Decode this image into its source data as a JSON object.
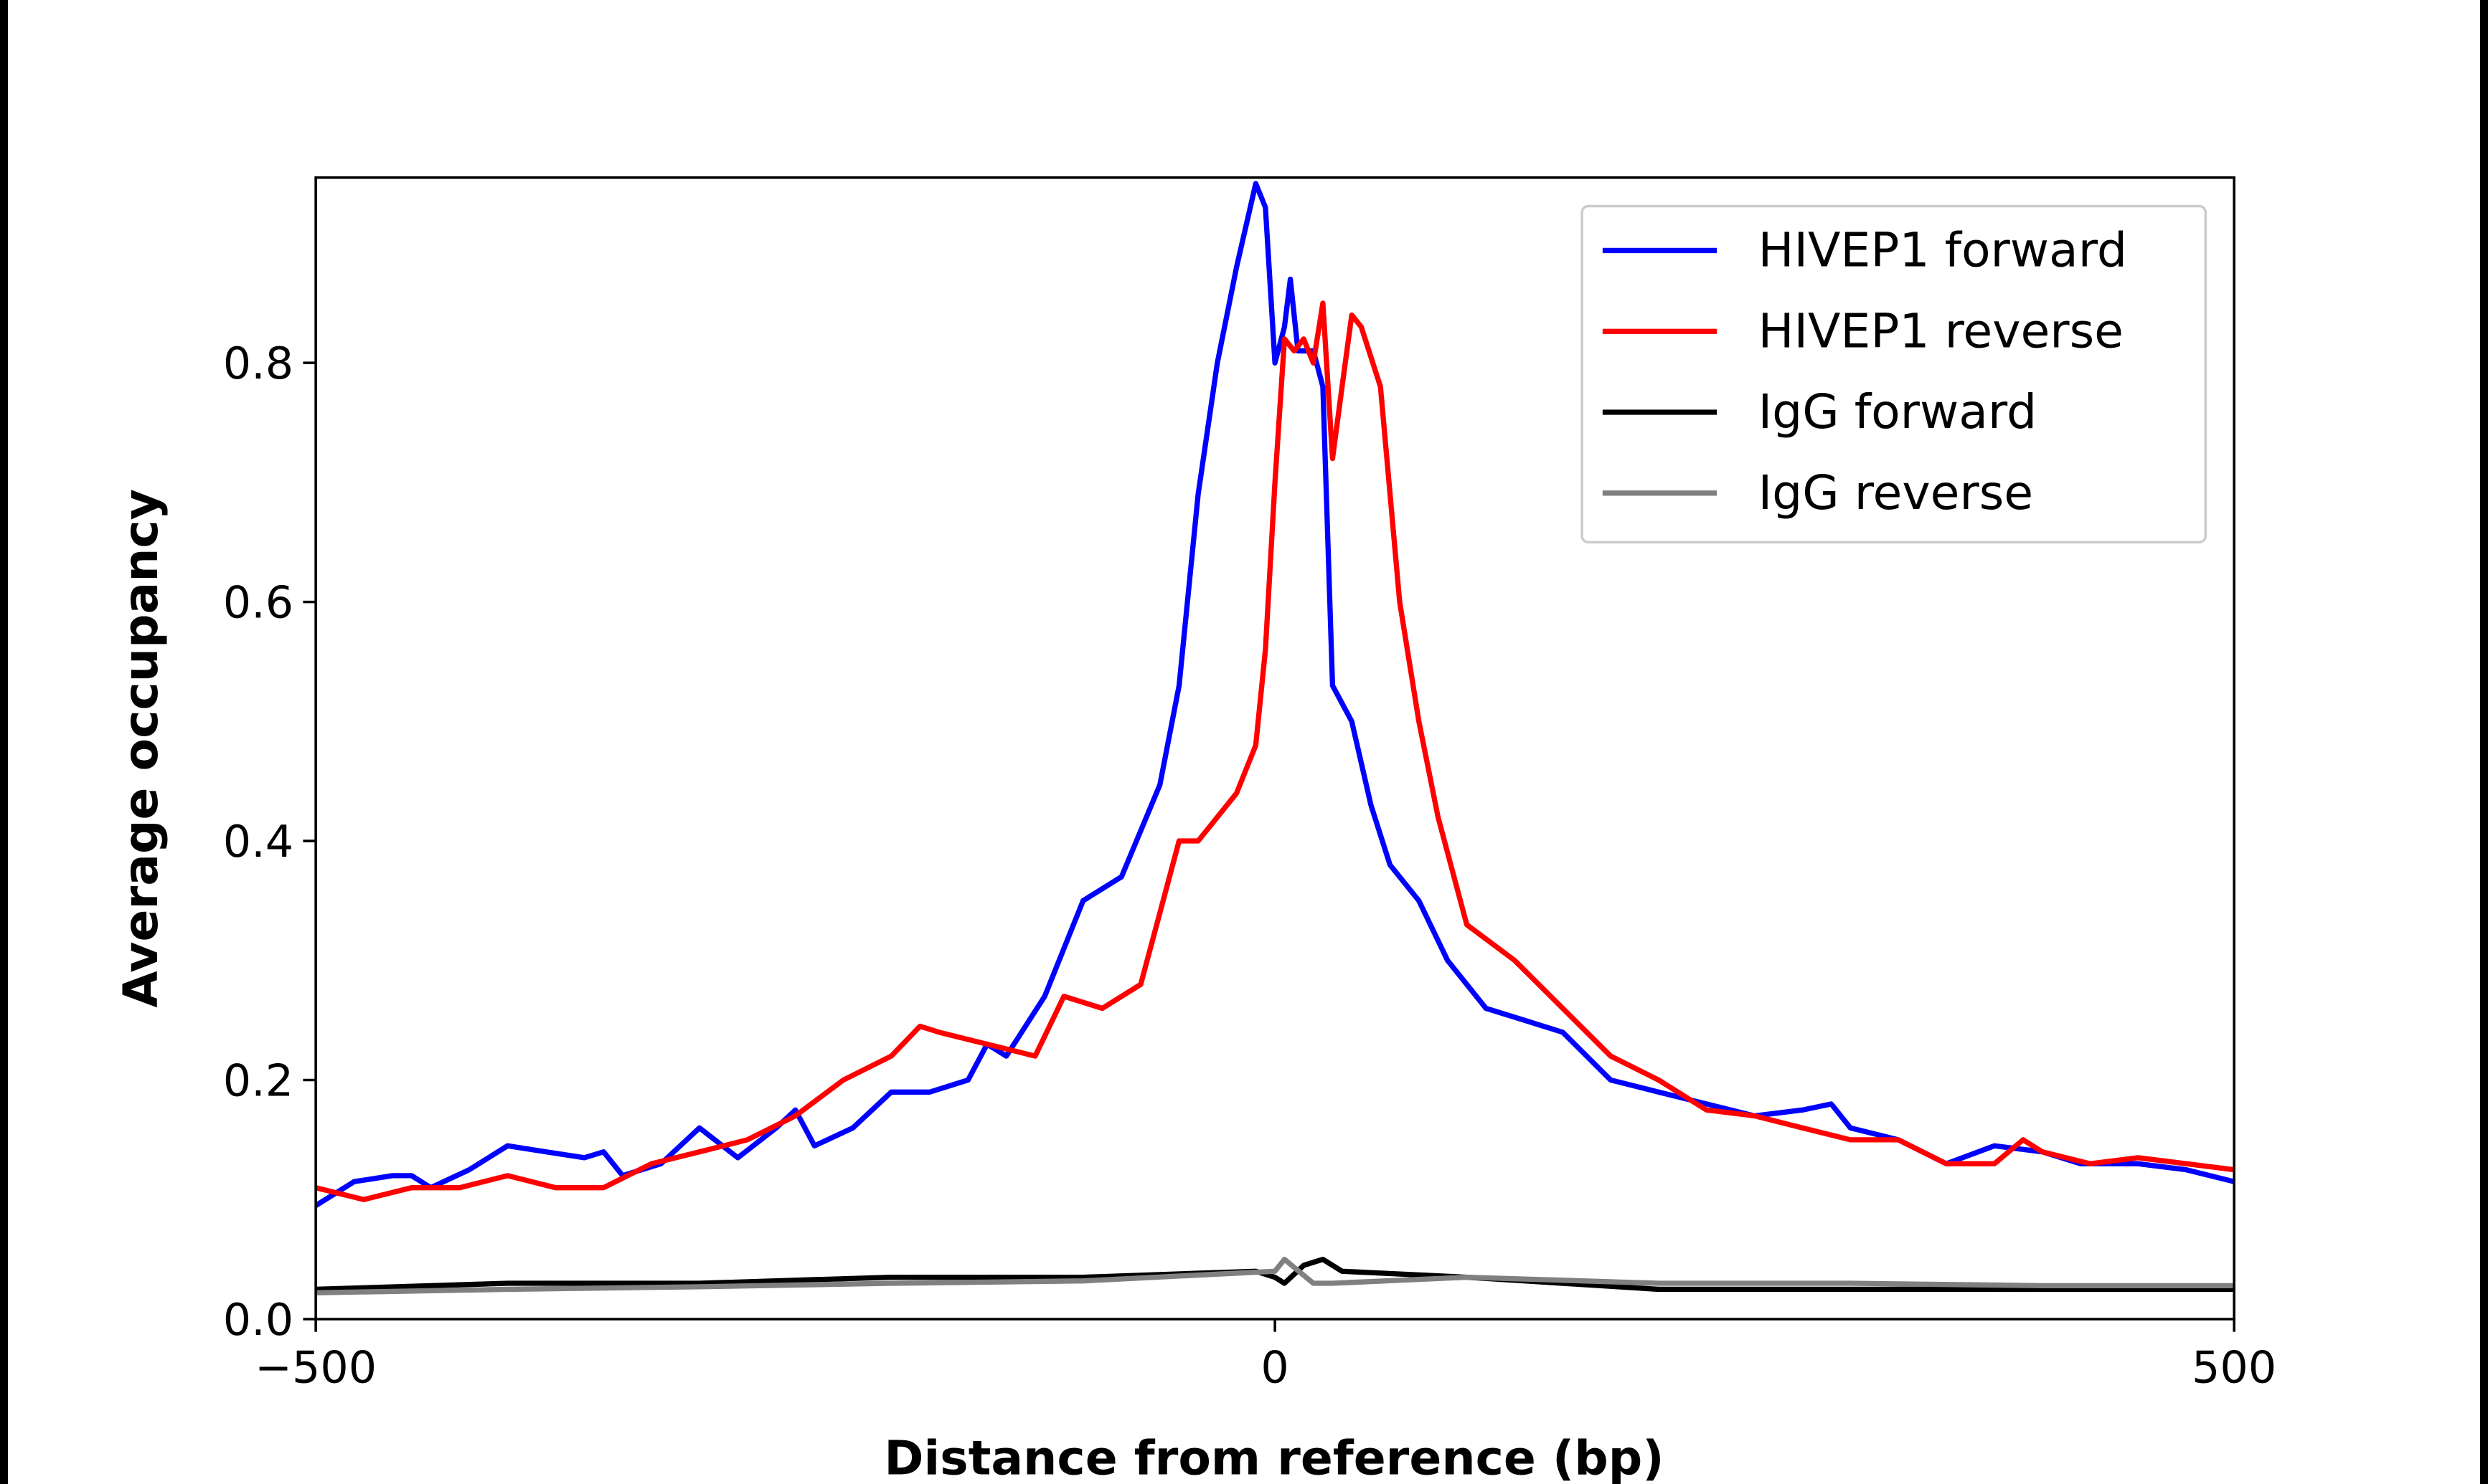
{
  "chart_data": {
    "type": "line",
    "title": "",
    "xlabel": "Distance from reference (bp)",
    "ylabel": "Average occupancy",
    "xlim": [
      -500,
      500
    ],
    "ylim": [
      0,
      0.955
    ],
    "xticks": [
      -500,
      0,
      500
    ],
    "xtick_labels": [
      "−500",
      "0",
      "500"
    ],
    "yticks": [
      0.0,
      0.2,
      0.4,
      0.6,
      0.8
    ],
    "ytick_labels": [
      "0.0",
      "0.2",
      "0.4",
      "0.6",
      "0.8"
    ],
    "grid": false,
    "legend_placement": "top-right",
    "series": [
      {
        "name": "HIVEP1 forward",
        "color": "#0000ff",
        "x": [
          -500,
          -480,
          -460,
          -450,
          -440,
          -420,
          -400,
          -380,
          -360,
          -350,
          -340,
          -320,
          -300,
          -280,
          -260,
          -250,
          -240,
          -220,
          -200,
          -180,
          -160,
          -150,
          -140,
          -120,
          -100,
          -80,
          -60,
          -50,
          -40,
          -30,
          -20,
          -10,
          -5,
          0,
          5,
          8,
          12,
          20,
          25,
          30,
          40,
          50,
          60,
          75,
          90,
          110,
          130,
          150,
          175,
          200,
          225,
          250,
          275,
          290,
          300,
          325,
          350,
          375,
          400,
          420,
          450,
          475,
          500
        ],
        "y": [
          0.095,
          0.115,
          0.12,
          0.12,
          0.11,
          0.125,
          0.145,
          0.14,
          0.135,
          0.14,
          0.12,
          0.13,
          0.16,
          0.135,
          0.16,
          0.175,
          0.145,
          0.16,
          0.19,
          0.19,
          0.2,
          0.23,
          0.22,
          0.27,
          0.35,
          0.37,
          0.447,
          0.53,
          0.69,
          0.8,
          0.88,
          0.95,
          0.93,
          0.8,
          0.83,
          0.87,
          0.81,
          0.81,
          0.78,
          0.53,
          0.5,
          0.43,
          0.38,
          0.35,
          0.3,
          0.26,
          0.25,
          0.24,
          0.2,
          0.19,
          0.18,
          0.17,
          0.175,
          0.18,
          0.16,
          0.15,
          0.13,
          0.145,
          0.14,
          0.13,
          0.13,
          0.125,
          0.115
        ]
      },
      {
        "name": "HIVEP1 reverse",
        "color": "#ff0000",
        "x": [
          -500,
          -475,
          -450,
          -425,
          -400,
          -375,
          -350,
          -325,
          -300,
          -275,
          -250,
          -225,
          -200,
          -185,
          -175,
          -150,
          -125,
          -110,
          -90,
          -70,
          -60,
          -50,
          -40,
          -30,
          -20,
          -10,
          -5,
          0,
          5,
          10,
          15,
          20,
          25,
          30,
          35,
          40,
          45,
          55,
          65,
          75,
          85,
          100,
          125,
          150,
          175,
          200,
          225,
          250,
          275,
          300,
          325,
          350,
          375,
          390,
          400,
          425,
          450,
          475,
          500
        ],
        "y": [
          0.11,
          0.1,
          0.11,
          0.11,
          0.12,
          0.11,
          0.11,
          0.13,
          0.14,
          0.15,
          0.17,
          0.2,
          0.22,
          0.245,
          0.24,
          0.23,
          0.22,
          0.27,
          0.26,
          0.28,
          0.34,
          0.4,
          0.4,
          0.42,
          0.44,
          0.48,
          0.56,
          0.7,
          0.82,
          0.81,
          0.82,
          0.8,
          0.85,
          0.72,
          0.78,
          0.84,
          0.83,
          0.78,
          0.6,
          0.5,
          0.42,
          0.33,
          0.3,
          0.26,
          0.22,
          0.2,
          0.175,
          0.17,
          0.16,
          0.15,
          0.15,
          0.13,
          0.13,
          0.15,
          0.14,
          0.13,
          0.135,
          0.13,
          0.125
        ]
      },
      {
        "name": "IgG forward",
        "color": "#000000",
        "x": [
          -500,
          -400,
          -300,
          -200,
          -100,
          -10,
          0,
          5,
          15,
          25,
          35,
          100,
          200,
          300,
          400,
          500
        ],
        "y": [
          0.025,
          0.03,
          0.03,
          0.035,
          0.035,
          0.04,
          0.035,
          0.03,
          0.045,
          0.05,
          0.04,
          0.035,
          0.025,
          0.025,
          0.025,
          0.025
        ]
      },
      {
        "name": "IgG reverse",
        "color": "#808080",
        "x": [
          -500,
          -400,
          -300,
          -200,
          -100,
          0,
          5,
          20,
          30,
          100,
          200,
          300,
          400,
          500
        ],
        "y": [
          0.022,
          0.025,
          0.027,
          0.03,
          0.032,
          0.04,
          0.05,
          0.03,
          0.03,
          0.035,
          0.03,
          0.03,
          0.028,
          0.028
        ]
      }
    ]
  }
}
